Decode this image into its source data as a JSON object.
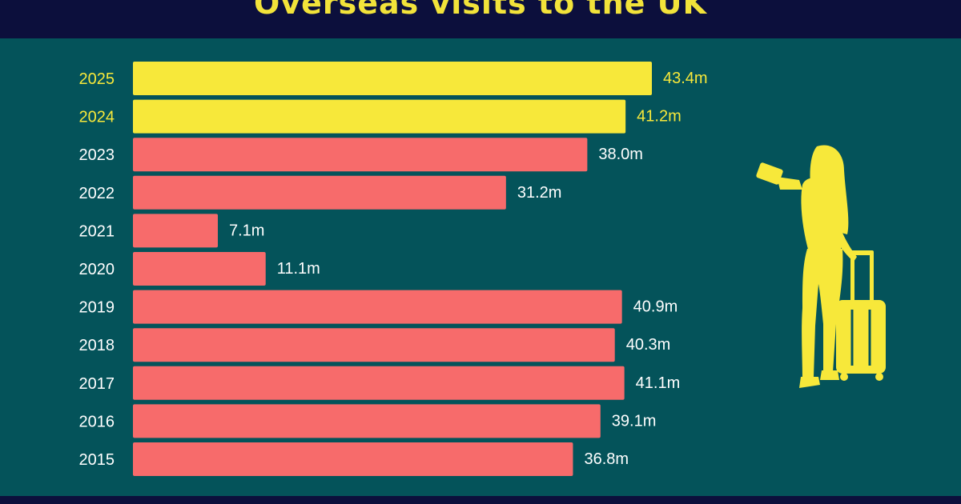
{
  "header": {
    "title": "Overseas visits to the UK"
  },
  "colors": {
    "background": "#04535a",
    "header_bg": "#0c0f3c",
    "highlight": "#f7e83a",
    "bar": "#f76b6b",
    "label": "#ffffff"
  },
  "chart_data": {
    "type": "bar",
    "orientation": "horizontal",
    "title": "Overseas visits to the UK",
    "unit": "m",
    "categories": [
      "2025",
      "2024",
      "2023",
      "2022",
      "2021",
      "2020",
      "2019",
      "2018",
      "2017",
      "2016",
      "2015"
    ],
    "values": [
      43.4,
      41.2,
      38.0,
      31.2,
      7.1,
      11.1,
      40.9,
      40.3,
      41.1,
      39.1,
      36.8
    ],
    "value_labels": [
      "43.4m",
      "41.2m",
      "38.0m",
      "31.2m",
      "7.1m",
      "11.1m",
      "40.9m",
      "40.3m",
      "41.1m",
      "39.1m",
      "36.8m"
    ],
    "highlighted": [
      "2025",
      "2024"
    ],
    "xlim": [
      0,
      43.4
    ],
    "grid": false,
    "legend": "none"
  },
  "illustration": {
    "icon": "traveler-with-suitcase-icon"
  }
}
